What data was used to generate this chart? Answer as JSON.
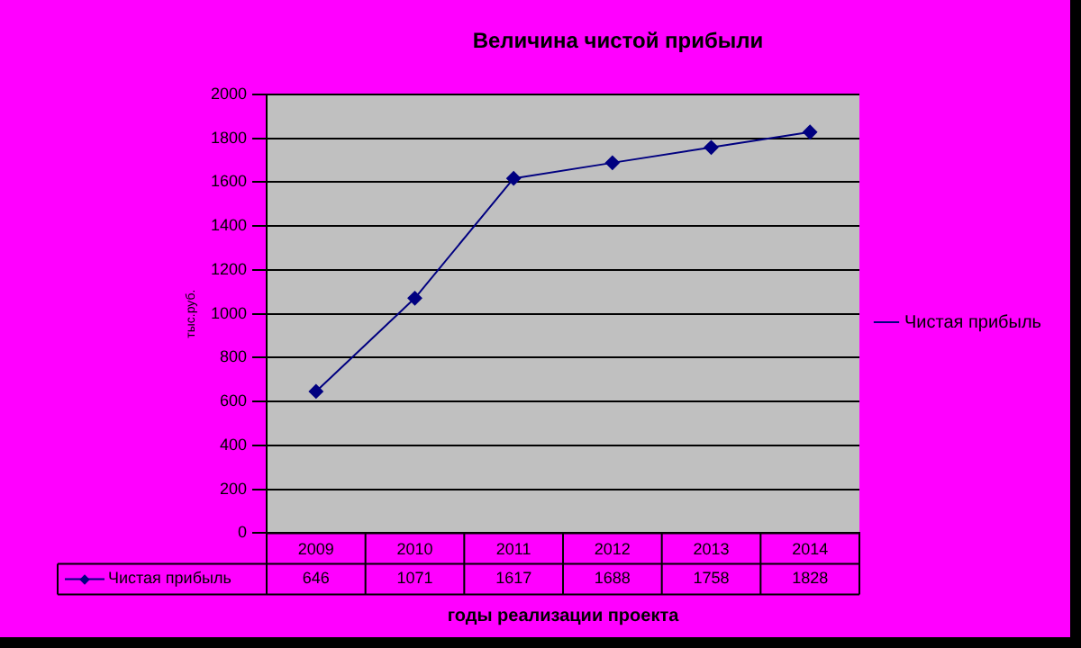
{
  "chart_data": {
    "type": "line",
    "title": "Величина чистой прибыли",
    "xlabel": "годы реализации проекта",
    "ylabel": "тыс.руб.",
    "categories": [
      "2009",
      "2010",
      "2011",
      "2012",
      "2013",
      "2014"
    ],
    "series": [
      {
        "name": "Чистая прибыль",
        "color": "#000080",
        "values": [
          646,
          1071,
          1617,
          1688,
          1758,
          1828
        ]
      }
    ],
    "ylim": [
      0,
      2000
    ],
    "yticks": [
      0,
      200,
      400,
      600,
      800,
      1000,
      1200,
      1400,
      1600,
      1800,
      2000
    ],
    "grid": "y",
    "legend": "right",
    "marker": "diamond",
    "line_style": "solid",
    "data_labels": true
  }
}
